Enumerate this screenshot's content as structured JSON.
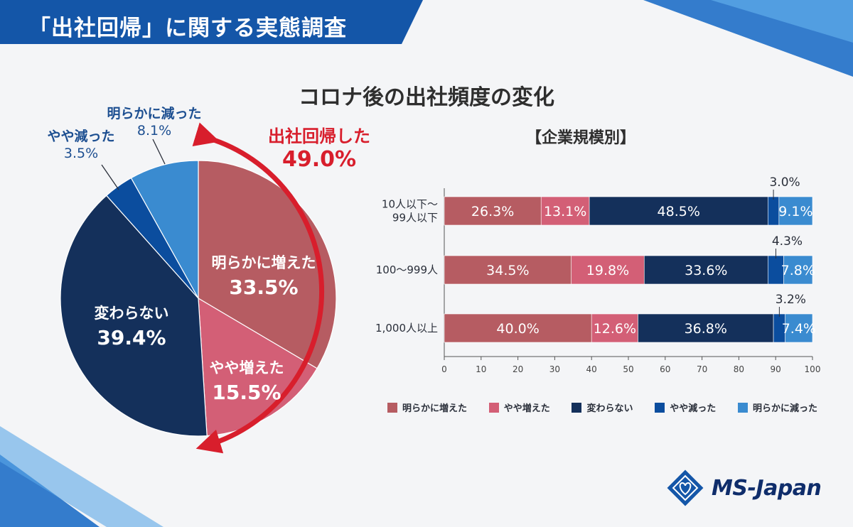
{
  "header": {
    "title": "「出社回帰」に関する実態調査"
  },
  "main_title": "コロナ後の出社頻度の変化",
  "pie": {
    "labels": [
      {
        "name": "明らかに増えた",
        "value": "33.5%"
      },
      {
        "name": "やや増えた",
        "value": "15.5%"
      },
      {
        "name": "変わらない",
        "value": "39.4%"
      },
      {
        "name": "やや減った",
        "value": "3.5%"
      },
      {
        "name": "明らかに減った",
        "value": "8.1%"
      }
    ],
    "return_label": {
      "name": "出社回帰した",
      "value": "49.0%"
    }
  },
  "bar_section": {
    "title": "【企業規模別】"
  },
  "legend": [
    "明らかに増えた",
    "やや増えた",
    "変わらない",
    "やや減った",
    "明らかに減った"
  ],
  "logo": {
    "text": "MS-Japan"
  },
  "colors": {
    "明らかに増えた": "#b65c62",
    "やや増えた": "#d35f76",
    "変わらない": "#14305b",
    "やや減った": "#0b4d9e",
    "明らかに減った": "#3a8bd0",
    "return_accent": "#d81e2c",
    "header_band": "#1456a8"
  },
  "chart_data": [
    {
      "type": "pie",
      "categories": [
        "明らかに増えた",
        "やや増えた",
        "変わらない",
        "やや減った",
        "明らかに減った"
      ],
      "values": [
        33.5,
        15.5,
        39.4,
        3.5,
        8.1
      ],
      "title": "コロナ後の出社頻度の変化",
      "annotation": "出社回帰した 49.0%"
    },
    {
      "type": "bar",
      "orientation": "horizontal",
      "stacked": true,
      "title": "【企業規模別】",
      "categories": [
        "10人以下〜\n99人以下",
        "100〜999人",
        "1,000人以上"
      ],
      "series": [
        {
          "name": "明らかに増えた",
          "values": [
            26.3,
            34.5,
            40.0
          ],
          "labels": [
            "26.3%",
            "34.5%",
            "40.0%"
          ]
        },
        {
          "name": "やや増えた",
          "values": [
            13.1,
            19.8,
            12.6
          ],
          "labels": [
            "13.1%",
            "19.8%",
            "12.6%"
          ]
        },
        {
          "name": "変わらない",
          "values": [
            48.5,
            33.6,
            36.8
          ],
          "labels": [
            "48.5%",
            "33.6%",
            "36.8%"
          ]
        },
        {
          "name": "やや減った",
          "values": [
            3.0,
            4.3,
            3.2
          ],
          "labels": [
            "3.0%",
            "4.3%",
            "3.2%"
          ]
        },
        {
          "name": "明らかに減った",
          "values": [
            9.1,
            7.8,
            7.4
          ],
          "labels": [
            "9.1%",
            "7.8%",
            "7.4%"
          ]
        }
      ],
      "xticks": [
        0,
        10,
        20,
        30,
        40,
        50,
        60,
        70,
        80,
        90,
        100
      ],
      "xlim": [
        0,
        100
      ],
      "legend": "bottom"
    }
  ]
}
